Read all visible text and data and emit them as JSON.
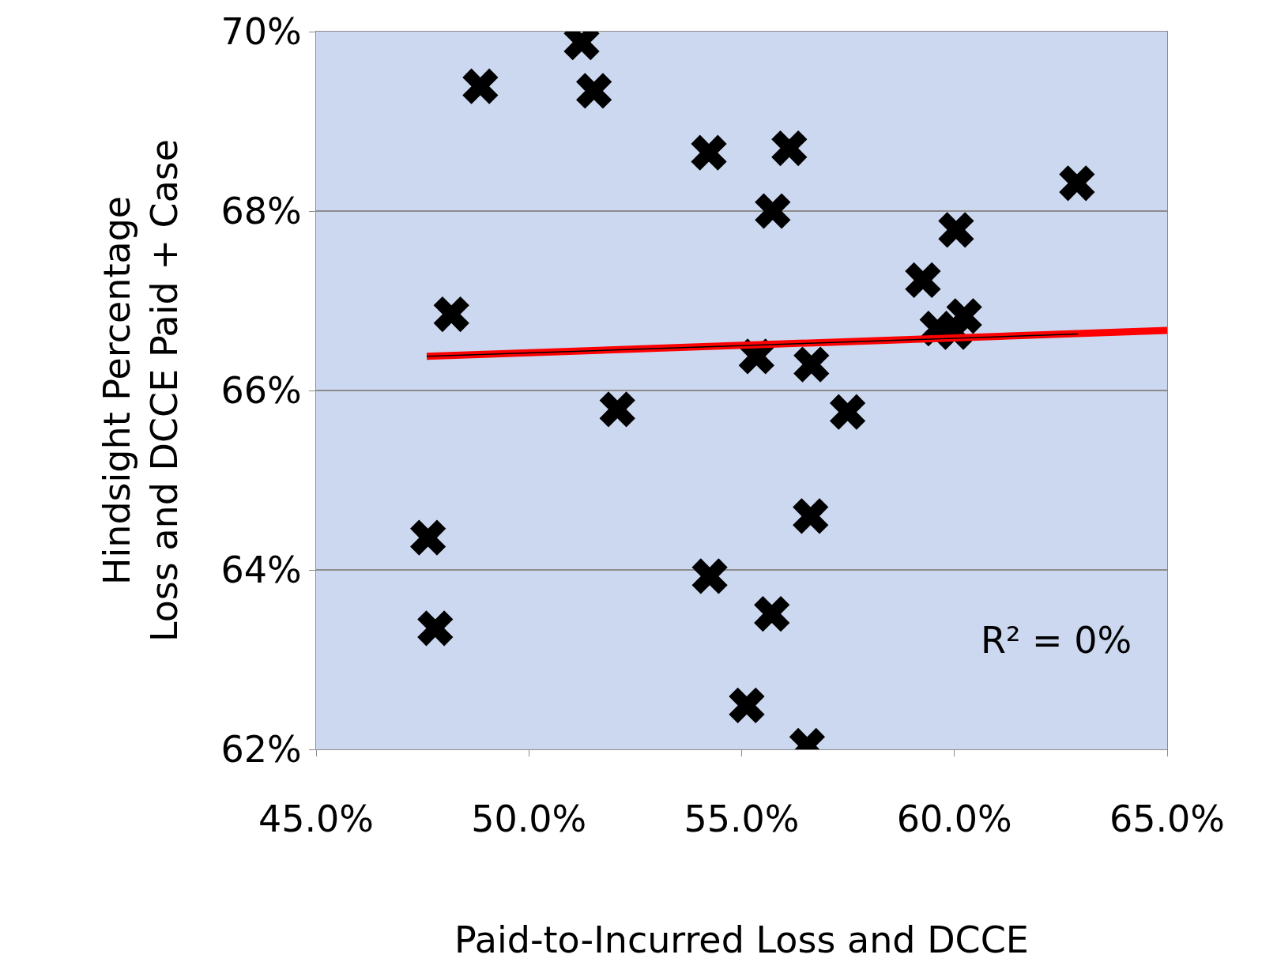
{
  "chart_data": {
    "type": "scatter",
    "xlabel": "Paid-to-Incurred Loss and DCCE",
    "ylabel": "Hindsight Percentage\nLoss and DCCE Paid + Case",
    "annotations": [
      "R² = 0%"
    ],
    "series": [
      {
        "color": "#000000",
        "marker": "cross",
        "x": [
          48.86,
          51.24,
          51.53,
          48.18,
          47.63,
          47.8,
          52.08,
          54.23,
          56.12,
          55.73,
          62.88,
          60.04,
          59.26,
          59.6,
          60.23,
          60.0,
          55.35,
          56.64,
          57.49,
          56.62,
          54.25,
          55.71,
          55.12,
          56.54
        ],
        "values": [
          69.39,
          69.88,
          69.34,
          66.85,
          64.36,
          63.35,
          65.79,
          68.65,
          68.7,
          68.0,
          68.31,
          67.79,
          67.23,
          66.69,
          66.83,
          66.65,
          66.38,
          66.29,
          65.76,
          64.6,
          63.93,
          63.51,
          62.49,
          62.04
        ]
      },
      {
        "type": "line",
        "color": "#ff0000",
        "x": [
          47.6,
          65.0
        ],
        "values": [
          66.38,
          66.67
        ]
      },
      {
        "type": "line",
        "color": "#000000",
        "x": [
          47.6,
          62.9
        ],
        "values": [
          66.38,
          66.63
        ]
      }
    ],
    "xlim": [
      45,
      65
    ],
    "xticks": [
      {
        "value": 45,
        "label": "45.0%"
      },
      {
        "value": 50,
        "label": "50.0%"
      },
      {
        "value": 55,
        "label": "55.0%"
      },
      {
        "value": 60,
        "label": "60.0%"
      },
      {
        "value": 65,
        "label": "65.0%"
      }
    ],
    "ylim": [
      62,
      70
    ],
    "yticks": [
      {
        "value": 62,
        "label": "62%"
      },
      {
        "value": 64,
        "label": "64%"
      },
      {
        "value": 66,
        "label": "66%"
      },
      {
        "value": 68,
        "label": "68%"
      },
      {
        "value": 70,
        "label": "70%"
      }
    ],
    "grid": "y"
  }
}
